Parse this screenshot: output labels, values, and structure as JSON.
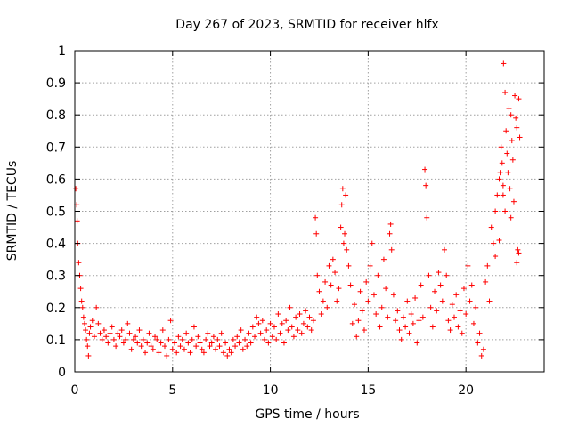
{
  "chart_data": {
    "type": "scatter",
    "title": "Day 267 of 2023, SRMTID for receiver hlfx",
    "xlabel": "GPS time / hours",
    "ylabel": "SRMTID / TECUs",
    "xlim": [
      0,
      24
    ],
    "ylim": [
      0,
      1
    ],
    "x_ticks": [
      0,
      5,
      10,
      15,
      20
    ],
    "y_ticks": [
      0,
      0.1,
      0.2,
      0.3,
      0.4,
      0.5,
      0.6,
      0.7,
      0.8,
      0.9,
      1
    ],
    "x_tick_labels": [
      "0",
      "5",
      "10",
      "15",
      "20"
    ],
    "y_tick_labels": [
      "0",
      "0.1",
      "0.2",
      "0.3",
      "0.4",
      "0.5",
      "0.6",
      "0.7",
      "0.8",
      "0.9",
      "1"
    ],
    "grid": true,
    "marker": "+",
    "color": "#ff0000",
    "series": [
      {
        "name": "SRMTID",
        "points": [
          [
            0.05,
            0.57
          ],
          [
            0.1,
            0.52
          ],
          [
            0.12,
            0.47
          ],
          [
            0.15,
            0.4
          ],
          [
            0.2,
            0.34
          ],
          [
            0.25,
            0.3
          ],
          [
            0.3,
            0.26
          ],
          [
            0.35,
            0.22
          ],
          [
            0.4,
            0.2
          ],
          [
            0.45,
            0.17
          ],
          [
            0.5,
            0.15
          ],
          [
            0.55,
            0.13
          ],
          [
            0.6,
            0.1
          ],
          [
            0.65,
            0.08
          ],
          [
            0.7,
            0.05
          ],
          [
            0.75,
            0.12
          ],
          [
            0.8,
            0.14
          ],
          [
            0.9,
            0.16
          ],
          [
            1.0,
            0.11
          ],
          [
            1.1,
            0.2
          ],
          [
            1.2,
            0.15
          ],
          [
            1.3,
            0.12
          ],
          [
            1.4,
            0.1
          ],
          [
            1.5,
            0.13
          ],
          [
            1.6,
            0.11
          ],
          [
            1.7,
            0.09
          ],
          [
            1.8,
            0.12
          ],
          [
            1.9,
            0.14
          ],
          [
            2.0,
            0.1
          ],
          [
            2.1,
            0.08
          ],
          [
            2.2,
            0.12
          ],
          [
            2.3,
            0.11
          ],
          [
            2.4,
            0.13
          ],
          [
            2.5,
            0.09
          ],
          [
            2.6,
            0.1
          ],
          [
            2.7,
            0.15
          ],
          [
            2.8,
            0.12
          ],
          [
            2.9,
            0.07
          ],
          [
            3.0,
            0.1
          ],
          [
            3.1,
            0.11
          ],
          [
            3.2,
            0.09
          ],
          [
            3.3,
            0.13
          ],
          [
            3.4,
            0.08
          ],
          [
            3.5,
            0.1
          ],
          [
            3.6,
            0.06
          ],
          [
            3.7,
            0.09
          ],
          [
            3.8,
            0.12
          ],
          [
            3.9,
            0.08
          ],
          [
            4.0,
            0.07
          ],
          [
            4.1,
            0.11
          ],
          [
            4.2,
            0.1
          ],
          [
            4.3,
            0.06
          ],
          [
            4.4,
            0.09
          ],
          [
            4.5,
            0.13
          ],
          [
            4.6,
            0.08
          ],
          [
            4.7,
            0.05
          ],
          [
            4.8,
            0.1
          ],
          [
            4.9,
            0.16
          ],
          [
            5.0,
            0.07
          ],
          [
            5.1,
            0.09
          ],
          [
            5.2,
            0.06
          ],
          [
            5.3,
            0.11
          ],
          [
            5.4,
            0.08
          ],
          [
            5.5,
            0.1
          ],
          [
            5.6,
            0.07
          ],
          [
            5.7,
            0.12
          ],
          [
            5.8,
            0.09
          ],
          [
            5.9,
            0.06
          ],
          [
            6.0,
            0.1
          ],
          [
            6.1,
            0.14
          ],
          [
            6.2,
            0.08
          ],
          [
            6.3,
            0.11
          ],
          [
            6.4,
            0.09
          ],
          [
            6.5,
            0.07
          ],
          [
            6.6,
            0.06
          ],
          [
            6.7,
            0.1
          ],
          [
            6.8,
            0.12
          ],
          [
            6.9,
            0.08
          ],
          [
            7.0,
            0.09
          ],
          [
            7.1,
            0.11
          ],
          [
            7.2,
            0.07
          ],
          [
            7.3,
            0.1
          ],
          [
            7.4,
            0.08
          ],
          [
            7.5,
            0.12
          ],
          [
            7.6,
            0.06
          ],
          [
            7.7,
            0.09
          ],
          [
            7.8,
            0.05
          ],
          [
            7.9,
            0.07
          ],
          [
            8.0,
            0.06
          ],
          [
            8.1,
            0.1
          ],
          [
            8.2,
            0.08
          ],
          [
            8.3,
            0.11
          ],
          [
            8.4,
            0.09
          ],
          [
            8.5,
            0.13
          ],
          [
            8.6,
            0.07
          ],
          [
            8.7,
            0.1
          ],
          [
            8.8,
            0.08
          ],
          [
            8.9,
            0.12
          ],
          [
            9.0,
            0.09
          ],
          [
            9.1,
            0.14
          ],
          [
            9.2,
            0.11
          ],
          [
            9.3,
            0.17
          ],
          [
            9.4,
            0.15
          ],
          [
            9.5,
            0.12
          ],
          [
            9.6,
            0.16
          ],
          [
            9.7,
            0.1
          ],
          [
            9.8,
            0.13
          ],
          [
            9.9,
            0.09
          ],
          [
            10.0,
            0.15
          ],
          [
            10.1,
            0.11
          ],
          [
            10.2,
            0.14
          ],
          [
            10.3,
            0.1
          ],
          [
            10.4,
            0.18
          ],
          [
            10.5,
            0.12
          ],
          [
            10.6,
            0.15
          ],
          [
            10.7,
            0.09
          ],
          [
            10.8,
            0.16
          ],
          [
            10.9,
            0.13
          ],
          [
            11.0,
            0.2
          ],
          [
            11.1,
            0.14
          ],
          [
            11.2,
            0.11
          ],
          [
            11.3,
            0.17
          ],
          [
            11.4,
            0.13
          ],
          [
            11.5,
            0.18
          ],
          [
            11.6,
            0.12
          ],
          [
            11.7,
            0.15
          ],
          [
            11.8,
            0.19
          ],
          [
            11.9,
            0.14
          ],
          [
            12.0,
            0.17
          ],
          [
            12.1,
            0.13
          ],
          [
            12.2,
            0.16
          ],
          [
            12.3,
            0.48
          ],
          [
            12.35,
            0.43
          ],
          [
            12.4,
            0.3
          ],
          [
            12.5,
            0.25
          ],
          [
            12.6,
            0.18
          ],
          [
            12.7,
            0.22
          ],
          [
            12.8,
            0.28
          ],
          [
            12.9,
            0.2
          ],
          [
            13.0,
            0.33
          ],
          [
            13.1,
            0.27
          ],
          [
            13.2,
            0.35
          ],
          [
            13.3,
            0.31
          ],
          [
            13.4,
            0.22
          ],
          [
            13.5,
            0.26
          ],
          [
            13.6,
            0.45
          ],
          [
            13.65,
            0.52
          ],
          [
            13.7,
            0.57
          ],
          [
            13.75,
            0.4
          ],
          [
            13.8,
            0.43
          ],
          [
            13.85,
            0.55
          ],
          [
            13.9,
            0.38
          ],
          [
            14.0,
            0.33
          ],
          [
            14.1,
            0.27
          ],
          [
            14.2,
            0.15
          ],
          [
            14.3,
            0.21
          ],
          [
            14.4,
            0.11
          ],
          [
            14.5,
            0.16
          ],
          [
            14.6,
            0.25
          ],
          [
            14.7,
            0.19
          ],
          [
            14.8,
            0.13
          ],
          [
            14.9,
            0.28
          ],
          [
            15.0,
            0.22
          ],
          [
            15.1,
            0.33
          ],
          [
            15.2,
            0.4
          ],
          [
            15.3,
            0.24
          ],
          [
            15.4,
            0.18
          ],
          [
            15.5,
            0.3
          ],
          [
            15.6,
            0.14
          ],
          [
            15.7,
            0.2
          ],
          [
            15.8,
            0.35
          ],
          [
            15.9,
            0.26
          ],
          [
            16.0,
            0.17
          ],
          [
            16.1,
            0.43
          ],
          [
            16.15,
            0.46
          ],
          [
            16.2,
            0.38
          ],
          [
            16.3,
            0.24
          ],
          [
            16.4,
            0.16
          ],
          [
            16.5,
            0.19
          ],
          [
            16.6,
            0.13
          ],
          [
            16.7,
            0.1
          ],
          [
            16.8,
            0.17
          ],
          [
            16.9,
            0.14
          ],
          [
            17.0,
            0.22
          ],
          [
            17.1,
            0.12
          ],
          [
            17.2,
            0.18
          ],
          [
            17.3,
            0.15
          ],
          [
            17.4,
            0.23
          ],
          [
            17.5,
            0.09
          ],
          [
            17.6,
            0.16
          ],
          [
            17.7,
            0.27
          ],
          [
            17.8,
            0.17
          ],
          [
            17.9,
            0.63
          ],
          [
            17.95,
            0.58
          ],
          [
            18.0,
            0.48
          ],
          [
            18.1,
            0.3
          ],
          [
            18.2,
            0.2
          ],
          [
            18.3,
            0.14
          ],
          [
            18.4,
            0.25
          ],
          [
            18.5,
            0.19
          ],
          [
            18.6,
            0.31
          ],
          [
            18.7,
            0.27
          ],
          [
            18.8,
            0.22
          ],
          [
            18.9,
            0.38
          ],
          [
            19.0,
            0.3
          ],
          [
            19.1,
            0.16
          ],
          [
            19.2,
            0.13
          ],
          [
            19.3,
            0.21
          ],
          [
            19.4,
            0.17
          ],
          [
            19.5,
            0.24
          ],
          [
            19.6,
            0.14
          ],
          [
            19.7,
            0.19
          ],
          [
            19.8,
            0.12
          ],
          [
            19.9,
            0.26
          ],
          [
            20.0,
            0.18
          ],
          [
            20.1,
            0.33
          ],
          [
            20.2,
            0.22
          ],
          [
            20.3,
            0.27
          ],
          [
            20.4,
            0.15
          ],
          [
            20.5,
            0.2
          ],
          [
            20.6,
            0.09
          ],
          [
            20.7,
            0.12
          ],
          [
            20.8,
            0.05
          ],
          [
            20.9,
            0.07
          ],
          [
            21.0,
            0.28
          ],
          [
            21.1,
            0.33
          ],
          [
            21.2,
            0.22
          ],
          [
            21.3,
            0.45
          ],
          [
            21.4,
            0.4
          ],
          [
            21.5,
            0.5
          ],
          [
            21.6,
            0.55
          ],
          [
            21.7,
            0.6
          ],
          [
            21.75,
            0.62
          ],
          [
            21.8,
            0.7
          ],
          [
            21.85,
            0.65
          ],
          [
            21.9,
            0.55
          ],
          [
            22.0,
            0.5
          ],
          [
            22.05,
            0.75
          ],
          [
            22.1,
            0.68
          ],
          [
            22.15,
            0.62
          ],
          [
            22.2,
            0.82
          ],
          [
            22.25,
            0.57
          ],
          [
            22.3,
            0.48
          ],
          [
            22.35,
            0.72
          ],
          [
            22.4,
            0.66
          ],
          [
            22.45,
            0.53
          ],
          [
            22.5,
            0.86
          ],
          [
            22.55,
            0.79
          ],
          [
            22.6,
            0.76
          ],
          [
            22.65,
            0.38
          ],
          [
            22.7,
            0.85
          ],
          [
            22.75,
            0.73
          ],
          [
            21.5,
            0.36
          ],
          [
            21.9,
            0.58
          ],
          [
            22.0,
            0.87
          ],
          [
            21.92,
            0.96
          ],
          [
            22.3,
            0.8
          ],
          [
            22.6,
            0.34
          ],
          [
            22.7,
            0.37
          ],
          [
            21.7,
            0.41
          ]
        ]
      }
    ]
  }
}
